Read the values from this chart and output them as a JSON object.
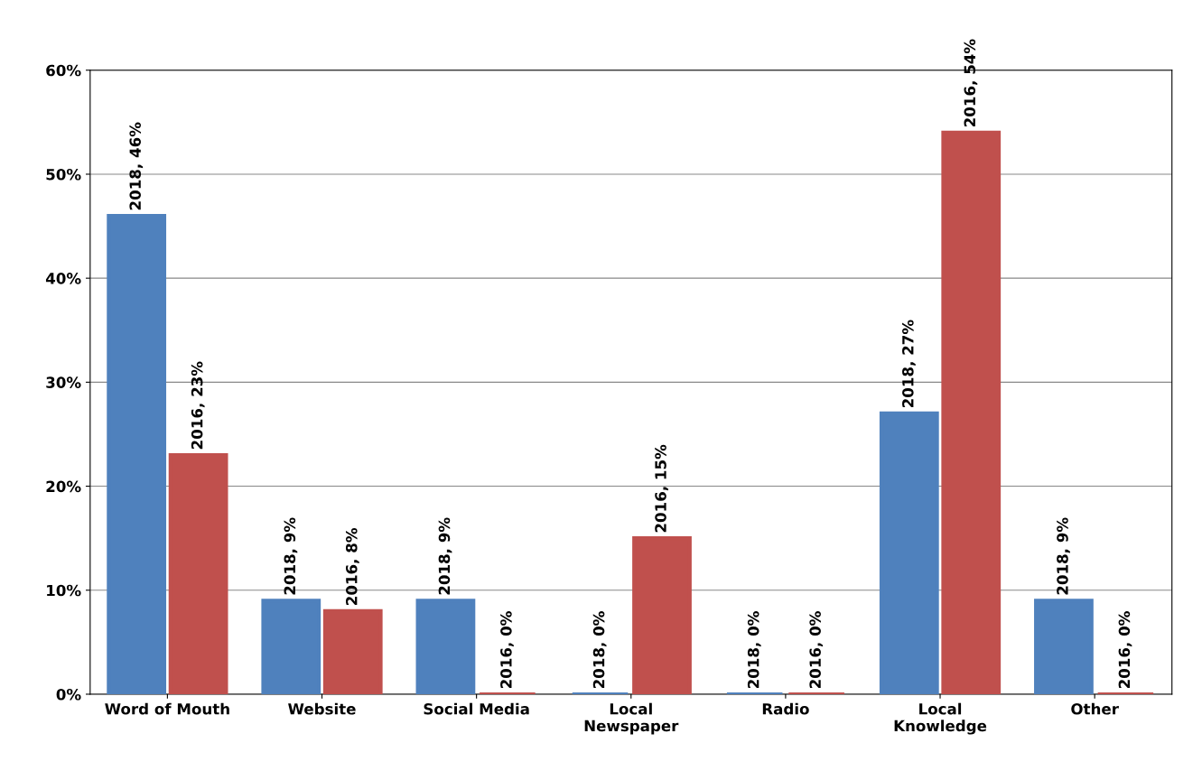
{
  "chart_data": {
    "type": "bar",
    "categories": [
      "Word of Mouth",
      "Website",
      "Social Media",
      "Local\nNewspaper",
      "Radio",
      "Local\nKnowledge",
      "Other"
    ],
    "series": [
      {
        "color": "#4f81bd",
        "values": [
          46,
          9,
          9,
          0,
          0,
          27,
          9
        ],
        "value_labels": [
          "2018, 46%",
          "2018, 9%",
          "2018, 9%",
          "2018, 0%",
          "2018, 0%",
          "2018, 27%",
          "2018, 9%"
        ]
      },
      {
        "color": "#c0504d",
        "values": [
          23,
          8,
          0,
          15,
          0,
          54,
          0
        ],
        "value_labels": [
          "2016, 23%",
          "2016, 8%",
          "2016, 0%",
          "2016, 15%",
          "2016, 0%",
          "2016, 54%",
          "2016, 0%"
        ]
      }
    ],
    "ylim": [
      0,
      60
    ],
    "yticks": [
      {
        "value": 0,
        "label": "0%"
      },
      {
        "value": 10,
        "label": "10%"
      },
      {
        "value": 20,
        "label": "20%"
      },
      {
        "value": 30,
        "label": "30%"
      },
      {
        "value": 40,
        "label": "40%"
      },
      {
        "value": 50,
        "label": "50%"
      },
      {
        "value": 60,
        "label": "60%"
      }
    ],
    "grid": "y",
    "legend": false
  }
}
